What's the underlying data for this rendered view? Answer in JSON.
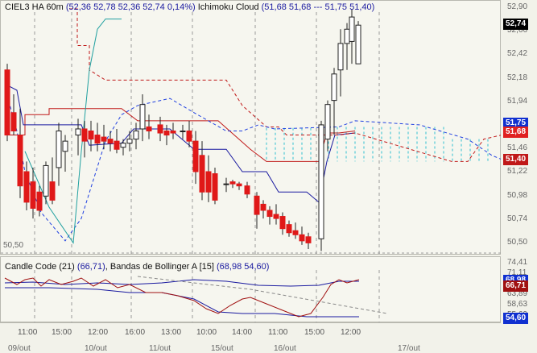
{
  "main": {
    "symbol": "CIEL3 HA 60m",
    "ohlc": "(52,36  52,78  52,36  52,74  0,14%)",
    "indicator_name": "Ichimoku Cloud",
    "indicator_values": "(51,68  51,68   ---   51,75  51,40)",
    "low_label": "50,50"
  },
  "main_axis": {
    "ticks": [
      "52,90",
      "52,66",
      "52,42",
      "52,18",
      "51,94",
      "51,70",
      "51,46",
      "51,22",
      "50,98",
      "50,74",
      "50,50"
    ],
    "tags": [
      {
        "text": "52,74",
        "color": "#000000"
      },
      {
        "text": "51,75",
        "color": "#1030d0"
      },
      {
        "text": "51,68",
        "color": "#e02020"
      },
      {
        "text": "51,40",
        "color": "#c01818"
      }
    ]
  },
  "indicator": {
    "label": "Candle Code (21)",
    "label_values": "(66,71)",
    "label2": "Bandas de Bollinger A [15]",
    "label2_values": "(68,98  54,60)"
  },
  "ind_axis": {
    "ticks": [
      "74,41",
      "71,11",
      "67,81",
      "63,89",
      "58,63",
      "55,69"
    ],
    "tags": [
      {
        "text": "68,98",
        "color": "#1030d0"
      },
      {
        "text": "66,71",
        "color": "#a01010"
      },
      {
        "text": "54,60",
        "color": "#1030d0"
      }
    ]
  },
  "time_axis": {
    "hours": [
      "11:00",
      "15:00",
      "12:00",
      "16:00",
      "13:00",
      "10:00",
      "14:00",
      "11:00",
      "15:00",
      "12:00"
    ],
    "dates": [
      "09/out",
      "10/out",
      "11/out",
      "15/out",
      "16/out",
      "17/out"
    ]
  },
  "colors": {
    "bull": "#ffffff",
    "bear": "#e01818",
    "tenkan": "#c01818",
    "kijun": "#1a1aa0",
    "senkou": "#2040e0",
    "cloud": "#30c0d0",
    "chikou": "#20a0a0"
  }
}
